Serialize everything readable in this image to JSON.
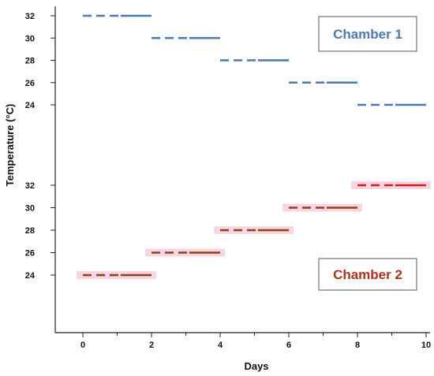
{
  "chart_data": {
    "type": "line",
    "xlabel": "Days",
    "ylabel": "Temperature (°C)",
    "xlim": [
      0,
      10
    ],
    "x_ticks": [
      "0",
      "2",
      "4",
      "6",
      "8",
      "10"
    ],
    "y_ticks_upper": [
      "32",
      "30",
      "28",
      "26",
      "24"
    ],
    "y_ticks_lower": [
      "32",
      "30",
      "28",
      "26",
      "24"
    ],
    "grid": false,
    "legend_placement": "boxed labels, top-right (Chamber 1) and bottom-right (Chamber 2)",
    "series": [
      {
        "name": "Chamber 1",
        "color": "#4a7ab5",
        "steps": [
          {
            "x_start": 0,
            "x_end": 2,
            "y": 32
          },
          {
            "x_start": 2,
            "x_end": 4,
            "y": 30
          },
          {
            "x_start": 4,
            "x_end": 6,
            "y": 28
          },
          {
            "x_start": 6,
            "x_end": 8,
            "y": 26
          },
          {
            "x_start": 8,
            "x_end": 10,
            "y": 24
          }
        ]
      },
      {
        "name": "Chamber 2",
        "color": "#8b4513",
        "highlight_color": "#f5c6dc",
        "steps": [
          {
            "x_start": 0,
            "x_end": 2,
            "y": 24,
            "color": "#8b4513"
          },
          {
            "x_start": 2,
            "x_end": 4,
            "y": 26,
            "color": "#8b4513"
          },
          {
            "x_start": 4,
            "x_end": 6,
            "y": 28,
            "color": "#8b4513"
          },
          {
            "x_start": 6,
            "x_end": 8,
            "y": 30,
            "color": "#8b4513"
          },
          {
            "x_start": 8,
            "x_end": 10,
            "y": 32,
            "color": "#d42020"
          }
        ]
      }
    ]
  },
  "legend": {
    "chamber1_label": "Chamber 1",
    "chamber1_color": "#4a7ab5",
    "chamber2_label": "Chamber 2",
    "chamber2_color": "#b03020"
  }
}
